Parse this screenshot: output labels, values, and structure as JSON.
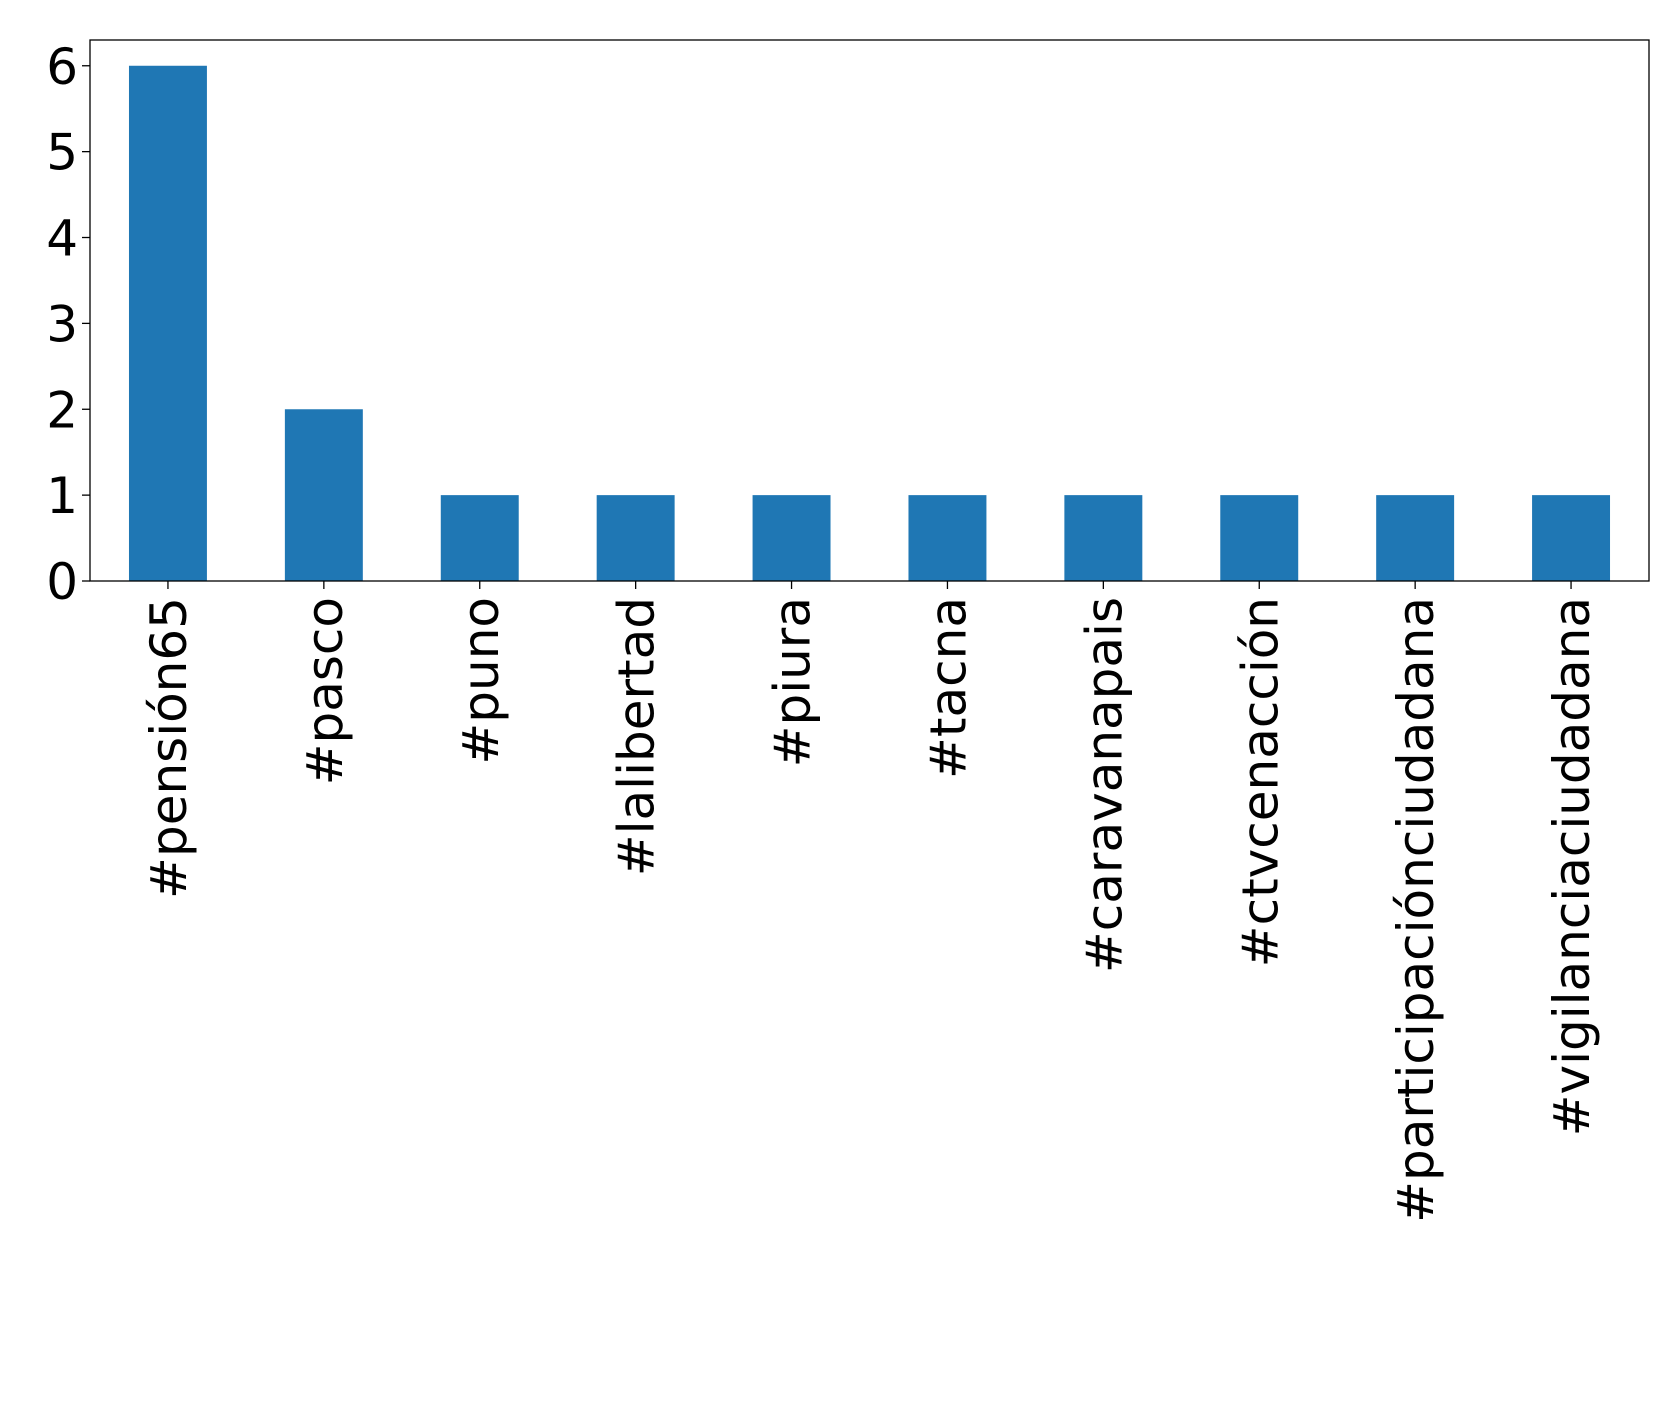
{
  "chart_data": {
    "type": "bar",
    "categories": [
      "#pensión65",
      "#pasco",
      "#puno",
      "#lalibertad",
      "#piura",
      "#tacna",
      "#caravanapais",
      "#ctvcenacción",
      "#participaciónciudadana",
      "#vigilanciaciudadana"
    ],
    "values": [
      6,
      2,
      1,
      1,
      1,
      1,
      1,
      1,
      1,
      1
    ],
    "yticks": [
      0,
      1,
      2,
      3,
      4,
      5,
      6
    ],
    "ylim": [
      0,
      6.3
    ],
    "title": "",
    "xlabel": "",
    "ylabel": "",
    "grid": false,
    "bar_color": "#1f77b4"
  }
}
